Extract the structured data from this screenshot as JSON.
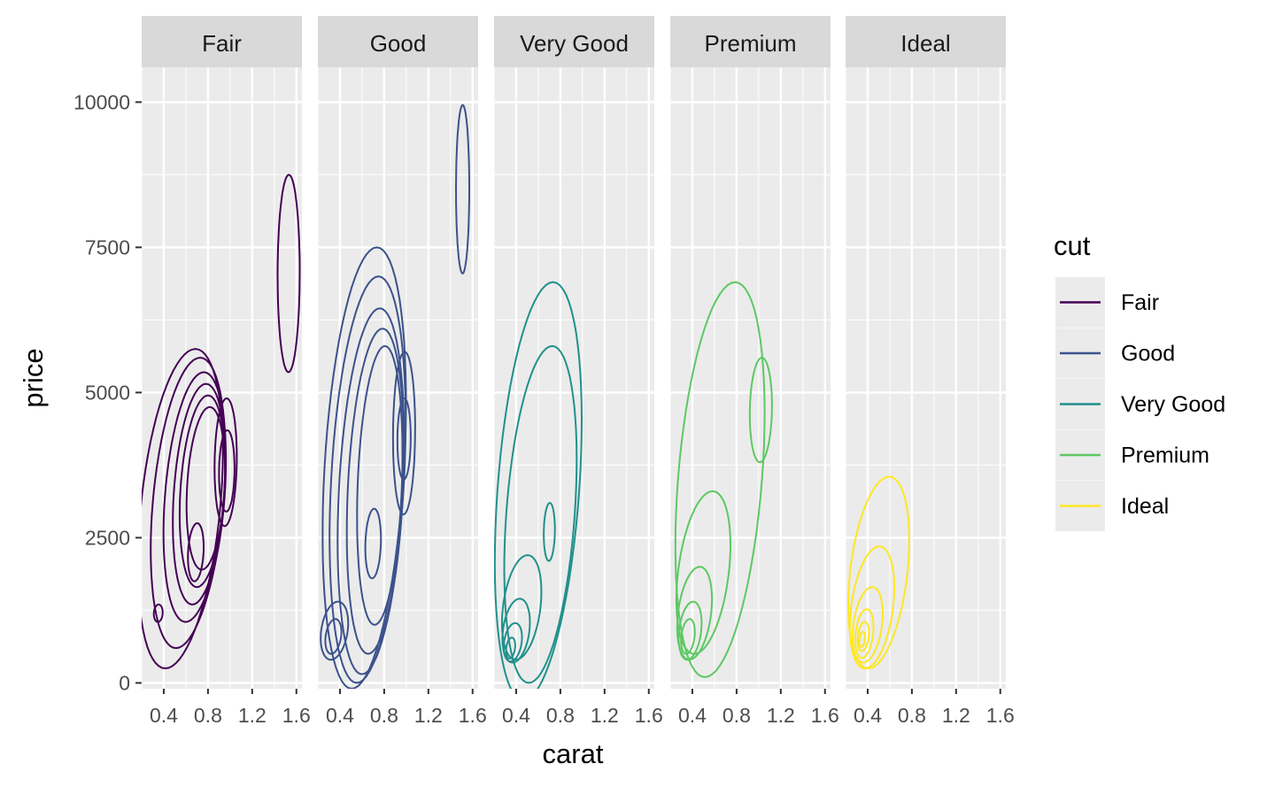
{
  "chart_data": {
    "type": "density-contour",
    "facet_by": "cut",
    "facets": [
      "Fair",
      "Good",
      "Very Good",
      "Premium",
      "Ideal"
    ],
    "xlabel": "carat",
    "ylabel": "price",
    "x_ticks": [
      0.4,
      0.8,
      1.2,
      1.6
    ],
    "x_tick_labels": [
      "0.4",
      "0.8",
      "1.2",
      "1.6"
    ],
    "xlim": [
      0.2,
      1.65
    ],
    "y_ticks": [
      0,
      2500,
      5000,
      7500,
      10000
    ],
    "y_tick_labels": [
      "0",
      "2500",
      "5000",
      "7500",
      "10000"
    ],
    "ylim": [
      -100,
      10600
    ],
    "grid": true,
    "legend": {
      "title": "cut",
      "position": "right",
      "entries": [
        {
          "label": "Fair",
          "color": "#440154"
        },
        {
          "label": "Good",
          "color": "#3B528B"
        },
        {
          "label": "Very Good",
          "color": "#21908C"
        },
        {
          "label": "Premium",
          "color": "#5DC863"
        },
        {
          "label": "Ideal",
          "color": "#FDE725"
        }
      ]
    },
    "series": [
      {
        "name": "Fair",
        "color": "#440154",
        "contours": [
          {
            "cx": 0.55,
            "cy": 3000,
            "rx": 0.36,
            "ry": 2750,
            "angle": 0.42
          },
          {
            "cx": 0.62,
            "cy": 3100,
            "rx": 0.32,
            "ry": 2500,
            "angle": 0.38
          },
          {
            "cx": 0.68,
            "cy": 3200,
            "rx": 0.27,
            "ry": 2150,
            "angle": 0.34
          },
          {
            "cx": 0.72,
            "cy": 3250,
            "rx": 0.23,
            "ry": 1900,
            "angle": 0.3
          },
          {
            "cx": 0.75,
            "cy": 3300,
            "rx": 0.2,
            "ry": 1650,
            "angle": 0.28
          },
          {
            "cx": 0.78,
            "cy": 3350,
            "rx": 0.17,
            "ry": 1400,
            "angle": 0.24
          },
          {
            "cx": 0.96,
            "cy": 3800,
            "rx": 0.1,
            "ry": 1100,
            "angle": 0.1
          },
          {
            "cx": 0.97,
            "cy": 3650,
            "rx": 0.07,
            "ry": 700,
            "angle": 0.08
          },
          {
            "cx": 0.69,
            "cy": 2250,
            "rx": 0.07,
            "ry": 500,
            "angle": 0.2
          },
          {
            "cx": 0.35,
            "cy": 1200,
            "rx": 0.04,
            "ry": 150,
            "angle": 0.1
          },
          {
            "cx": 1.53,
            "cy": 7050,
            "rx": 0.1,
            "ry": 1700,
            "angle": 0.02
          }
        ]
      },
      {
        "name": "Good",
        "color": "#3B528B",
        "contours": [
          {
            "cx": 0.62,
            "cy": 3700,
            "rx": 0.36,
            "ry": 3800,
            "angle": 0.35
          },
          {
            "cx": 0.65,
            "cy": 3500,
            "rx": 0.33,
            "ry": 3500,
            "angle": 0.33
          },
          {
            "cx": 0.68,
            "cy": 3300,
            "rx": 0.29,
            "ry": 3150,
            "angle": 0.31
          },
          {
            "cx": 0.72,
            "cy": 3300,
            "rx": 0.25,
            "ry": 2800,
            "angle": 0.29
          },
          {
            "cx": 0.76,
            "cy": 3400,
            "rx": 0.2,
            "ry": 2400,
            "angle": 0.26
          },
          {
            "cx": 0.98,
            "cy": 4300,
            "rx": 0.1,
            "ry": 1400,
            "angle": 0.06
          },
          {
            "cx": 0.98,
            "cy": 4200,
            "rx": 0.06,
            "ry": 700,
            "angle": 0.05
          },
          {
            "cx": 0.7,
            "cy": 2400,
            "rx": 0.07,
            "ry": 600,
            "angle": 0.15
          },
          {
            "cx": 0.35,
            "cy": 900,
            "rx": 0.12,
            "ry": 500,
            "angle": 0.3
          },
          {
            "cx": 0.34,
            "cy": 800,
            "rx": 0.07,
            "ry": 300,
            "angle": 0.3
          },
          {
            "cx": 1.51,
            "cy": 8500,
            "rx": 0.06,
            "ry": 1450,
            "angle": 0.01
          }
        ]
      },
      {
        "name": "Very Good",
        "color": "#21908C",
        "contours": [
          {
            "cx": 0.6,
            "cy": 3300,
            "rx": 0.37,
            "ry": 3600,
            "angle": 0.4
          },
          {
            "cx": 0.62,
            "cy": 2900,
            "rx": 0.31,
            "ry": 2900,
            "angle": 0.38
          },
          {
            "cx": 0.45,
            "cy": 1300,
            "rx": 0.17,
            "ry": 900,
            "angle": 0.35
          },
          {
            "cx": 0.4,
            "cy": 900,
            "rx": 0.12,
            "ry": 550,
            "angle": 0.3
          },
          {
            "cx": 0.37,
            "cy": 700,
            "rx": 0.08,
            "ry": 330,
            "angle": 0.3
          },
          {
            "cx": 0.35,
            "cy": 600,
            "rx": 0.04,
            "ry": 180,
            "angle": 0.3
          },
          {
            "cx": 0.7,
            "cy": 2600,
            "rx": 0.05,
            "ry": 500,
            "angle": 0.1
          }
        ]
      },
      {
        "name": "Premium",
        "color": "#5DC863",
        "contours": [
          {
            "cx": 0.65,
            "cy": 3500,
            "rx": 0.38,
            "ry": 3400,
            "angle": 0.4
          },
          {
            "cx": 0.5,
            "cy": 1900,
            "rx": 0.23,
            "ry": 1400,
            "angle": 0.4
          },
          {
            "cx": 0.42,
            "cy": 1200,
            "rx": 0.15,
            "ry": 800,
            "angle": 0.35
          },
          {
            "cx": 0.38,
            "cy": 900,
            "rx": 0.1,
            "ry": 500,
            "angle": 0.3
          },
          {
            "cx": 0.36,
            "cy": 800,
            "rx": 0.06,
            "ry": 300,
            "angle": 0.3
          },
          {
            "cx": 1.02,
            "cy": 4700,
            "rx": 0.1,
            "ry": 900,
            "angle": 0.1
          }
        ]
      },
      {
        "name": "Ideal",
        "color": "#FDE725",
        "contours": [
          {
            "cx": 0.5,
            "cy": 1900,
            "rx": 0.26,
            "ry": 1650,
            "angle": 0.4
          },
          {
            "cx": 0.44,
            "cy": 1300,
            "rx": 0.19,
            "ry": 1050,
            "angle": 0.38
          },
          {
            "cx": 0.4,
            "cy": 1000,
            "rx": 0.13,
            "ry": 650,
            "angle": 0.35
          },
          {
            "cx": 0.37,
            "cy": 850,
            "rx": 0.08,
            "ry": 420,
            "angle": 0.3
          },
          {
            "cx": 0.36,
            "cy": 800,
            "rx": 0.05,
            "ry": 250,
            "angle": 0.3
          },
          {
            "cx": 0.35,
            "cy": 750,
            "rx": 0.025,
            "ry": 130,
            "angle": 0.3
          }
        ]
      }
    ]
  }
}
